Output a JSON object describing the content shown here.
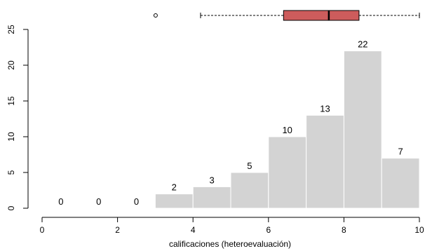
{
  "chart_data": {
    "type": "bar",
    "subtype": "histogram-with-boxplot",
    "title": "",
    "xlabel": "calificaciones (heteroevaluación)",
    "ylabel": "",
    "xlim": [
      0,
      10
    ],
    "ylim": [
      0,
      25
    ],
    "x_ticks": [
      "0",
      "2",
      "4",
      "6",
      "8",
      "10"
    ],
    "y_ticks": [
      "0",
      "5",
      "10",
      "15",
      "20",
      "25"
    ],
    "bins": [
      {
        "from": 0,
        "to": 1,
        "count": 0,
        "label": "0"
      },
      {
        "from": 1,
        "to": 2,
        "count": 0,
        "label": "0"
      },
      {
        "from": 2,
        "to": 3,
        "count": 0,
        "label": "0"
      },
      {
        "from": 3,
        "to": 4,
        "count": 2,
        "label": "2"
      },
      {
        "from": 4,
        "to": 5,
        "count": 3,
        "label": "3"
      },
      {
        "from": 5,
        "to": 6,
        "count": 5,
        "label": "5"
      },
      {
        "from": 6,
        "to": 7,
        "count": 10,
        "label": "10"
      },
      {
        "from": 7,
        "to": 8,
        "count": 13,
        "label": "13"
      },
      {
        "from": 8,
        "to": 9,
        "count": 22,
        "label": "22"
      },
      {
        "from": 9,
        "to": 10,
        "count": 7,
        "label": "7"
      }
    ],
    "boxplot": {
      "whisker_low": 4.2,
      "q1": 6.4,
      "median": 7.6,
      "q3": 8.4,
      "whisker_high": 10,
      "outliers": [
        3
      ]
    },
    "grid": false,
    "legend": "none",
    "colors": {
      "bars": "#d3d3d3",
      "bar_border": "#ffffff",
      "box": "#cd5c5c",
      "box_border": "#000000"
    }
  }
}
